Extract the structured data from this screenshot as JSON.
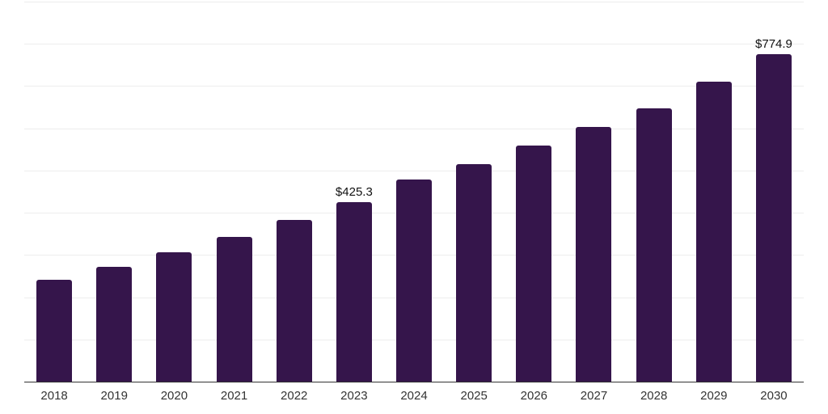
{
  "chart_data": {
    "type": "bar",
    "title": "",
    "xlabel": "",
    "ylabel": "",
    "categories": [
      "2018",
      "2019",
      "2020",
      "2021",
      "2022",
      "2023",
      "2024",
      "2025",
      "2026",
      "2027",
      "2028",
      "2029",
      "2030"
    ],
    "values": [
      242,
      272,
      306,
      342,
      383,
      425.3,
      478,
      515,
      560,
      603,
      648,
      710,
      774.9
    ],
    "data_labels": [
      "",
      "",
      "",
      "",
      "",
      "$425.3",
      "",
      "",
      "",
      "",
      "",
      "",
      "$774.9"
    ],
    "ylim": [
      0,
      900
    ],
    "y_gridline_step": 100,
    "grid": "horizontal-only",
    "y_axis_tick_labels_visible": false,
    "legend_position": "none",
    "colors": {
      "bar": "#35154B",
      "gridline": "#ededed",
      "axis_line": "#333333",
      "tick_label": "#333333",
      "data_label": "#111111",
      "background": "#ffffff"
    }
  }
}
